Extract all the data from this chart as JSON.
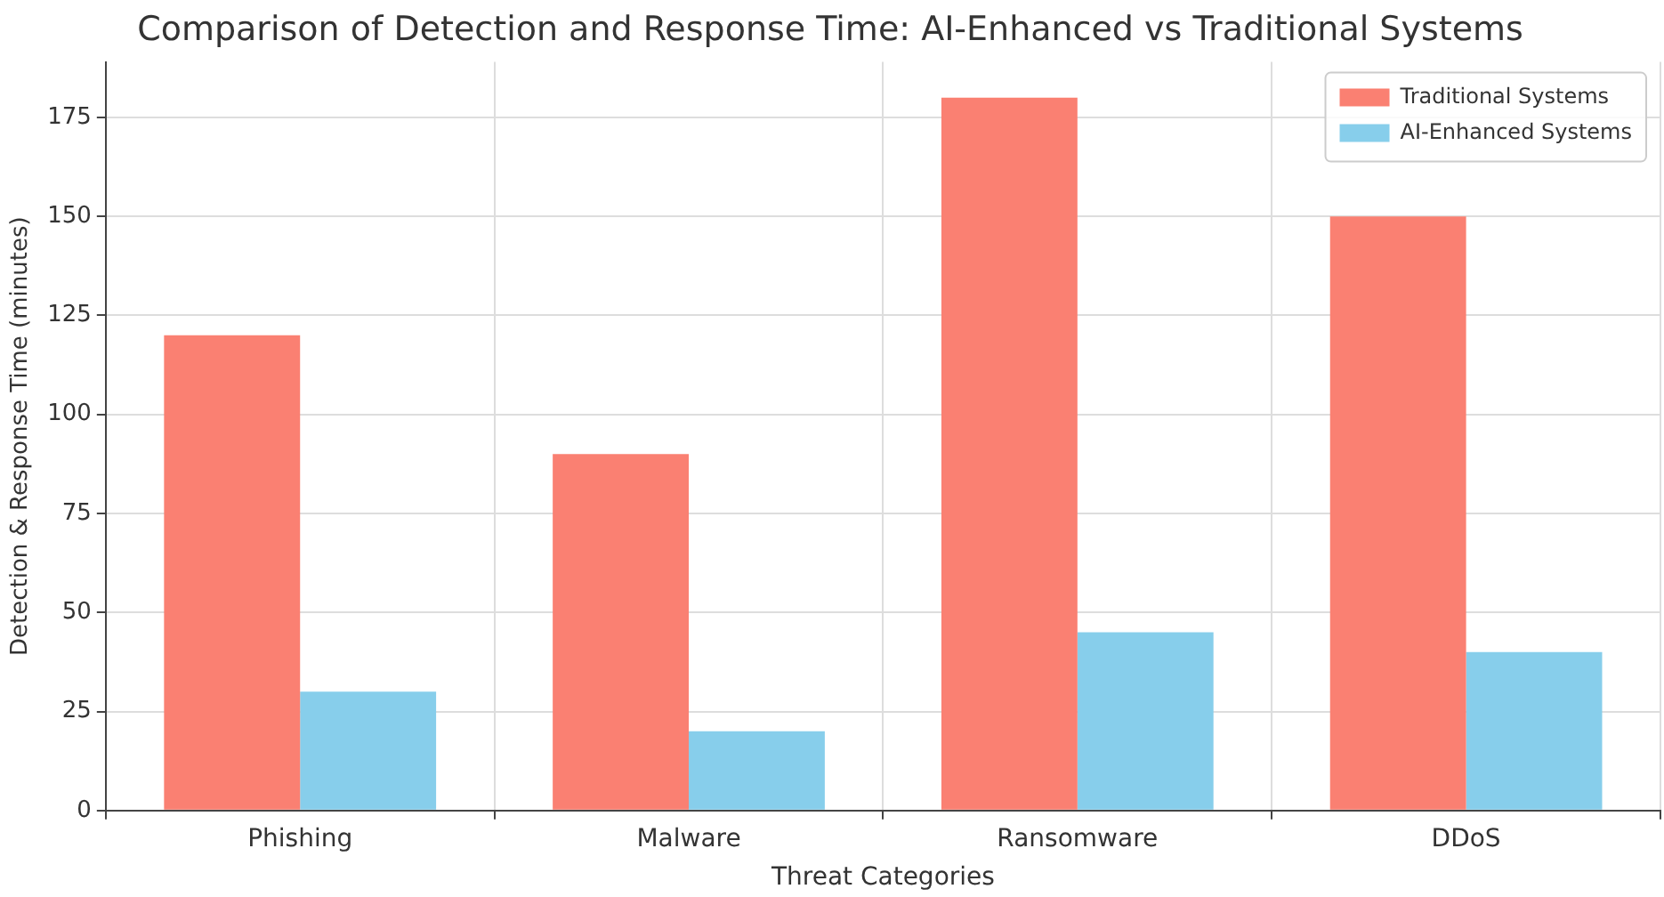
{
  "chart_data": {
    "type": "bar",
    "title": "Comparison of Detection and Response Time: AI-Enhanced vs Traditional Systems",
    "xlabel": "Threat Categories",
    "ylabel": "Detection & Response Time (minutes)",
    "categories": [
      "Phishing",
      "Malware",
      "Ransomware",
      "DDoS"
    ],
    "series": [
      {
        "name": "Traditional Systems",
        "color": "#fa8072",
        "values": [
          120,
          90,
          180,
          150
        ]
      },
      {
        "name": "AI-Enhanced Systems",
        "color": "#87ceeb",
        "values": [
          30,
          20,
          45,
          40
        ]
      }
    ],
    "ylim": [
      0,
      189
    ],
    "yticks": [
      0,
      25,
      50,
      75,
      100,
      125,
      150,
      175
    ],
    "grid": true,
    "legend": "top right"
  }
}
